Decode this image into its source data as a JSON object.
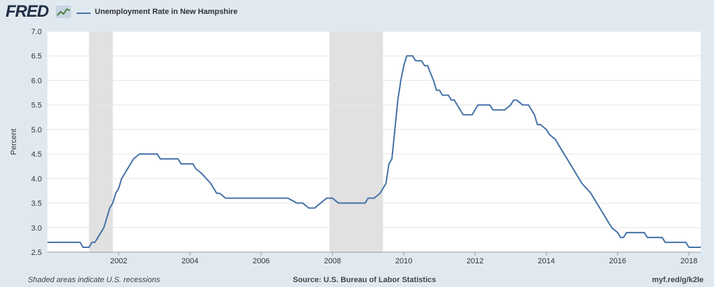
{
  "header": {
    "logo_text": "FRED",
    "logo_icon": "fred-chart-icon",
    "legend_label": "Unemployment Rate in New Hampshire",
    "legend_color": "#4572a7"
  },
  "footer": {
    "note": "Shaded areas indicate U.S. recessions",
    "source": "Source: U.S. Bureau of Labor Statistics",
    "link": "myf.red/g/k2le"
  },
  "colors": {
    "background": "#e1e9f0",
    "plot_background": "#ffffff",
    "line": "#4572a7",
    "recession_shading": "#e1e1e1",
    "grid": "#e6e6e6"
  },
  "chart_data": {
    "type": "line",
    "title": "",
    "xlabel": "",
    "ylabel": "Percent",
    "x_range": [
      "2000-01",
      "2018-05"
    ],
    "ylim": [
      2.5,
      7.0
    ],
    "y_ticks": [
      "2.5",
      "3.0",
      "3.5",
      "4.0",
      "4.5",
      "5.0",
      "5.5",
      "6.0",
      "6.5",
      "7.0"
    ],
    "x_ticks": [
      "2002",
      "2004",
      "2006",
      "2008",
      "2010",
      "2012",
      "2014",
      "2016",
      "2018"
    ],
    "grid": true,
    "legend_position": "top-left",
    "recessions": [
      [
        "2001-03",
        "2001-11"
      ],
      [
        "2007-12",
        "2009-06"
      ]
    ],
    "series": [
      {
        "name": "Unemployment Rate in New Hampshire",
        "points": [
          [
            "2000-01",
            2.7
          ],
          [
            "2000-12",
            2.7
          ],
          [
            "2001-01",
            2.6
          ],
          [
            "2001-03",
            2.6
          ],
          [
            "2001-04",
            2.7
          ],
          [
            "2001-05",
            2.7
          ],
          [
            "2001-07",
            2.9
          ],
          [
            "2001-08",
            3.0
          ],
          [
            "2001-09",
            3.2
          ],
          [
            "2001-10",
            3.4
          ],
          [
            "2001-11",
            3.5
          ],
          [
            "2001-12",
            3.7
          ],
          [
            "2002-01",
            3.8
          ],
          [
            "2002-02",
            4.0
          ],
          [
            "2002-04",
            4.2
          ],
          [
            "2002-06",
            4.4
          ],
          [
            "2002-08",
            4.5
          ],
          [
            "2002-12",
            4.5
          ],
          [
            "2003-02",
            4.5
          ],
          [
            "2003-03",
            4.4
          ],
          [
            "2003-09",
            4.4
          ],
          [
            "2003-10",
            4.3
          ],
          [
            "2004-02",
            4.3
          ],
          [
            "2004-03",
            4.2
          ],
          [
            "2004-05",
            4.1
          ],
          [
            "2004-08",
            3.9
          ],
          [
            "2004-10",
            3.7
          ],
          [
            "2004-11",
            3.7
          ],
          [
            "2005-01",
            3.6
          ],
          [
            "2006-10",
            3.6
          ],
          [
            "2007-01",
            3.5
          ],
          [
            "2007-03",
            3.5
          ],
          [
            "2007-05",
            3.4
          ],
          [
            "2007-07",
            3.4
          ],
          [
            "2007-09",
            3.5
          ],
          [
            "2007-11",
            3.6
          ],
          [
            "2008-01",
            3.6
          ],
          [
            "2008-03",
            3.5
          ],
          [
            "2008-12",
            3.5
          ],
          [
            "2009-01",
            3.6
          ],
          [
            "2009-03",
            3.6
          ],
          [
            "2009-05",
            3.7
          ],
          [
            "2009-07",
            3.9
          ],
          [
            "2009-08",
            4.3
          ],
          [
            "2009-09",
            4.4
          ],
          [
            "2009-10",
            5.0
          ],
          [
            "2009-11",
            5.6
          ],
          [
            "2009-12",
            6.0
          ],
          [
            "2010-01",
            6.3
          ],
          [
            "2010-02",
            6.5
          ],
          [
            "2010-04",
            6.5
          ],
          [
            "2010-05",
            6.4
          ],
          [
            "2010-07",
            6.4
          ],
          [
            "2010-08",
            6.3
          ],
          [
            "2010-09",
            6.3
          ],
          [
            "2010-11",
            6.0
          ],
          [
            "2010-12",
            5.8
          ],
          [
            "2011-01",
            5.8
          ],
          [
            "2011-02",
            5.7
          ],
          [
            "2011-04",
            5.7
          ],
          [
            "2011-05",
            5.6
          ],
          [
            "2011-06",
            5.6
          ],
          [
            "2011-08",
            5.4
          ],
          [
            "2011-09",
            5.3
          ],
          [
            "2011-12",
            5.3
          ],
          [
            "2012-02",
            5.5
          ],
          [
            "2012-06",
            5.5
          ],
          [
            "2012-07",
            5.4
          ],
          [
            "2012-11",
            5.4
          ],
          [
            "2013-01",
            5.5
          ],
          [
            "2013-02",
            5.6
          ],
          [
            "2013-03",
            5.6
          ],
          [
            "2013-05",
            5.5
          ],
          [
            "2013-07",
            5.5
          ],
          [
            "2013-09",
            5.3
          ],
          [
            "2013-10",
            5.1
          ],
          [
            "2013-11",
            5.1
          ],
          [
            "2014-01",
            5.0
          ],
          [
            "2014-02",
            4.9
          ],
          [
            "2014-04",
            4.8
          ],
          [
            "2014-06",
            4.6
          ],
          [
            "2014-09",
            4.3
          ],
          [
            "2014-11",
            4.1
          ],
          [
            "2015-01",
            3.9
          ],
          [
            "2015-04",
            3.7
          ],
          [
            "2015-06",
            3.5
          ],
          [
            "2015-08",
            3.3
          ],
          [
            "2015-09",
            3.2
          ],
          [
            "2015-11",
            3.0
          ],
          [
            "2016-01",
            2.9
          ],
          [
            "2016-02",
            2.8
          ],
          [
            "2016-03",
            2.8
          ],
          [
            "2016-04",
            2.9
          ],
          [
            "2016-10",
            2.9
          ],
          [
            "2016-11",
            2.8
          ],
          [
            "2017-04",
            2.8
          ],
          [
            "2017-05",
            2.7
          ],
          [
            "2017-12",
            2.7
          ],
          [
            "2018-01",
            2.6
          ],
          [
            "2018-05",
            2.6
          ]
        ]
      }
    ]
  }
}
